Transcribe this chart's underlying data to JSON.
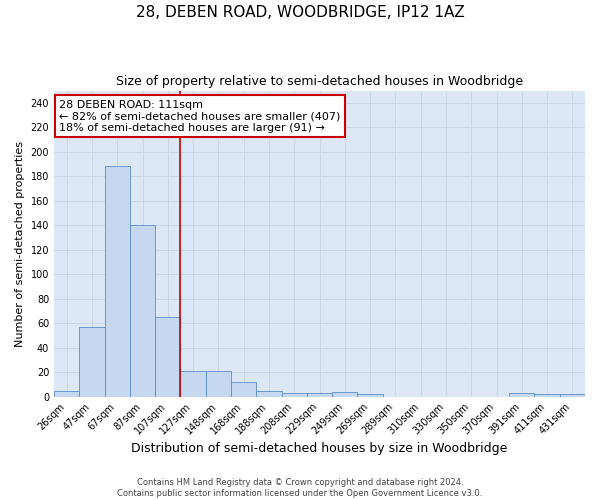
{
  "title1": "28, DEBEN ROAD, WOODBRIDGE, IP12 1AZ",
  "title2": "Size of property relative to semi-detached houses in Woodbridge",
  "xlabel": "Distribution of semi-detached houses by size in Woodbridge",
  "ylabel": "Number of semi-detached properties",
  "categories": [
    "26sqm",
    "47sqm",
    "67sqm",
    "87sqm",
    "107sqm",
    "127sqm",
    "148sqm",
    "168sqm",
    "188sqm",
    "208sqm",
    "229sqm",
    "249sqm",
    "269sqm",
    "289sqm",
    "310sqm",
    "330sqm",
    "350sqm",
    "370sqm",
    "391sqm",
    "411sqm",
    "431sqm"
  ],
  "values": [
    5,
    57,
    188,
    140,
    65,
    21,
    21,
    12,
    5,
    3,
    3,
    4,
    2,
    0,
    0,
    0,
    0,
    0,
    3,
    2,
    2
  ],
  "bar_color": "#c5d8f0",
  "bar_edge_color": "#5b8dc8",
  "property_line_x": 4.5,
  "annotation_text": "28 DEBEN ROAD: 111sqm\n← 82% of semi-detached houses are smaller (407)\n18% of semi-detached houses are larger (91) →",
  "annotation_box_color": "white",
  "annotation_box_edge_color": "#cc0000",
  "vline_color": "#cc0000",
  "ylim": [
    0,
    250
  ],
  "yticks": [
    0,
    20,
    40,
    60,
    80,
    100,
    120,
    140,
    160,
    180,
    200,
    220,
    240
  ],
  "grid_color": "#c8d4e4",
  "background_color": "#dce8f5",
  "footer1": "Contains HM Land Registry data © Crown copyright and database right 2024.",
  "footer2": "Contains public sector information licensed under the Open Government Licence v3.0.",
  "title1_fontsize": 11,
  "title2_fontsize": 9,
  "xlabel_fontsize": 9,
  "ylabel_fontsize": 8,
  "tick_fontsize": 7,
  "annotation_fontsize": 8
}
